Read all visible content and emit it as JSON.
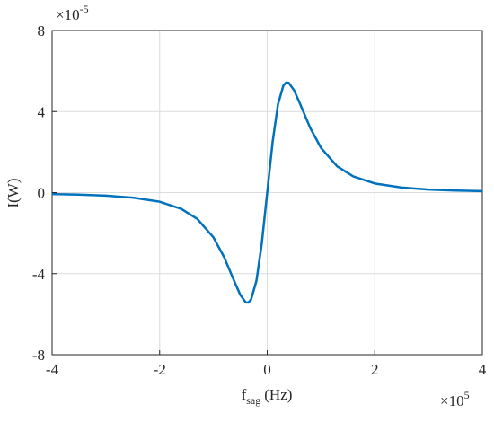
{
  "chart_data": {
    "type": "line",
    "x_label": {
      "main": "f",
      "sub": "sag",
      "rest": "(Hz)"
    },
    "y_label": "I(W)",
    "x_exponent": {
      "base": "×10",
      "power": "5"
    },
    "y_exponent": {
      "base": "×10",
      "power": "-5"
    },
    "x": [
      -4,
      -3.5,
      -3,
      -2.5,
      -2,
      -1.6,
      -1.3,
      -1,
      -0.8,
      -0.6,
      -0.5,
      -0.4,
      -0.35,
      -0.3,
      -0.2,
      -0.1,
      0,
      0.1,
      0.2,
      0.3,
      0.35,
      0.4,
      0.5,
      0.6,
      0.8,
      1,
      1.3,
      1.6,
      2,
      2.5,
      3,
      3.5,
      4
    ],
    "series": [
      {
        "color": "#0072bd",
        "values": [
          -0.07,
          -0.1,
          -0.15,
          -0.25,
          -0.45,
          -0.8,
          -1.3,
          -2.21,
          -3.19,
          -4.45,
          -5.05,
          -5.42,
          -5.43,
          -5.28,
          -4.35,
          -2.49,
          0,
          2.49,
          4.35,
          5.28,
          5.43,
          5.42,
          5.05,
          4.45,
          3.19,
          2.21,
          1.3,
          0.8,
          0.45,
          0.25,
          0.15,
          0.1,
          0.07
        ]
      }
    ],
    "xlim": [
      -4,
      4
    ],
    "xticks": [
      -4,
      -2,
      0,
      2,
      4
    ],
    "ylim": [
      -8,
      8
    ],
    "yticks": [
      -8,
      -4,
      0,
      4,
      8
    ],
    "grid": true
  }
}
